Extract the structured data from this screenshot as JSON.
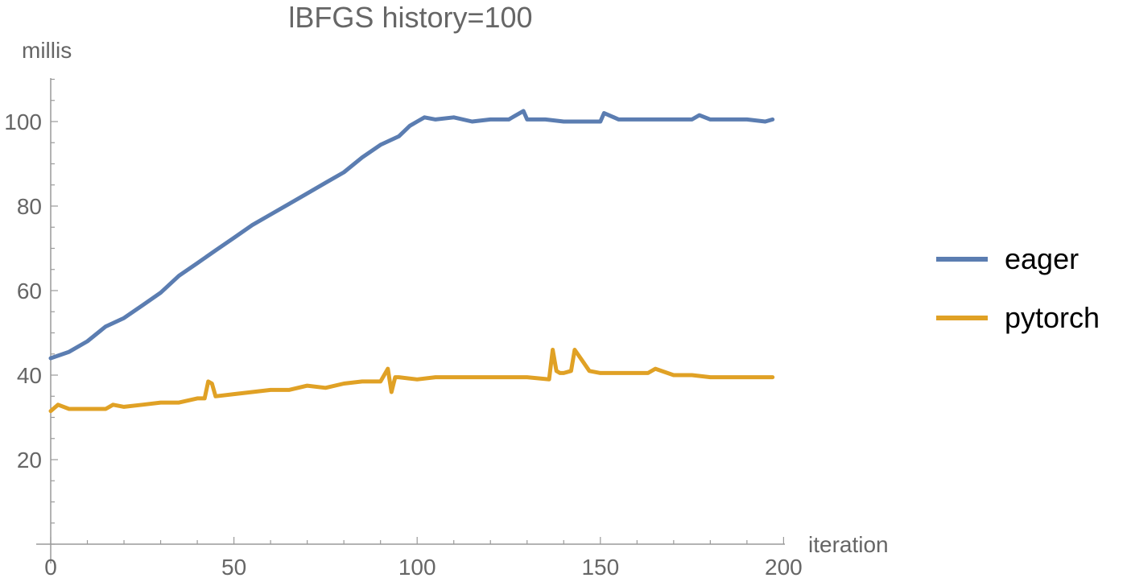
{
  "chart_data": {
    "type": "line",
    "title": "lBFGS history=100",
    "xlabel": "iteration",
    "ylabel": "millis",
    "xlim": [
      0,
      200
    ],
    "ylim": [
      0,
      110
    ],
    "xticks": [
      0,
      50,
      100,
      150,
      200
    ],
    "yticks": [
      20,
      40,
      60,
      80,
      100
    ],
    "grid": false,
    "legend_position": "right",
    "series": [
      {
        "name": "eager",
        "color": "#5B7DB1",
        "x": [
          0,
          5,
          10,
          15,
          20,
          25,
          30,
          35,
          40,
          45,
          50,
          55,
          60,
          65,
          70,
          75,
          80,
          85,
          90,
          95,
          98,
          100,
          102,
          105,
          110,
          115,
          120,
          125,
          129,
          130,
          135,
          140,
          145,
          150,
          151,
          155,
          160,
          165,
          170,
          175,
          177,
          180,
          185,
          190,
          195,
          197
        ],
        "y": [
          44,
          45.5,
          48,
          51.5,
          53.5,
          56.5,
          59.5,
          63.5,
          66.5,
          69.5,
          72.5,
          75.5,
          78,
          80.5,
          83,
          85.5,
          88,
          91.5,
          94.5,
          96.5,
          99,
          100,
          101,
          100.5,
          101,
          100,
          100.5,
          100.5,
          102.5,
          100.5,
          100.5,
          100,
          100,
          100,
          102,
          100.5,
          100.5,
          100.5,
          100.5,
          100.5,
          101.5,
          100.5,
          100.5,
          100.5,
          100,
          100.5
        ]
      },
      {
        "name": "pytorch",
        "color": "#E0A125",
        "x": [
          0,
          2,
          5,
          10,
          15,
          17,
          20,
          25,
          30,
          35,
          40,
          42,
          43,
          44,
          45,
          50,
          55,
          60,
          65,
          70,
          75,
          80,
          85,
          90,
          92,
          93,
          94,
          95,
          100,
          105,
          110,
          115,
          120,
          125,
          130,
          136,
          137,
          138,
          139,
          140,
          142,
          143,
          145,
          147,
          150,
          155,
          160,
          163,
          165,
          170,
          175,
          180,
          185,
          190,
          195,
          197
        ],
        "y": [
          31.5,
          33,
          32,
          32,
          32,
          33,
          32.5,
          33,
          33.5,
          33.5,
          34.5,
          34.5,
          38.5,
          38,
          35,
          35.5,
          36,
          36.5,
          36.5,
          37.5,
          37,
          38,
          38.5,
          38.5,
          41.5,
          36,
          39.5,
          39.5,
          39,
          39.5,
          39.5,
          39.5,
          39.5,
          39.5,
          39.5,
          39,
          46,
          41,
          40.5,
          40.5,
          41,
          46,
          43.5,
          41,
          40.5,
          40.5,
          40.5,
          40.5,
          41.5,
          40,
          40,
          39.5,
          39.5,
          39.5,
          39.5,
          39.5
        ]
      }
    ]
  }
}
